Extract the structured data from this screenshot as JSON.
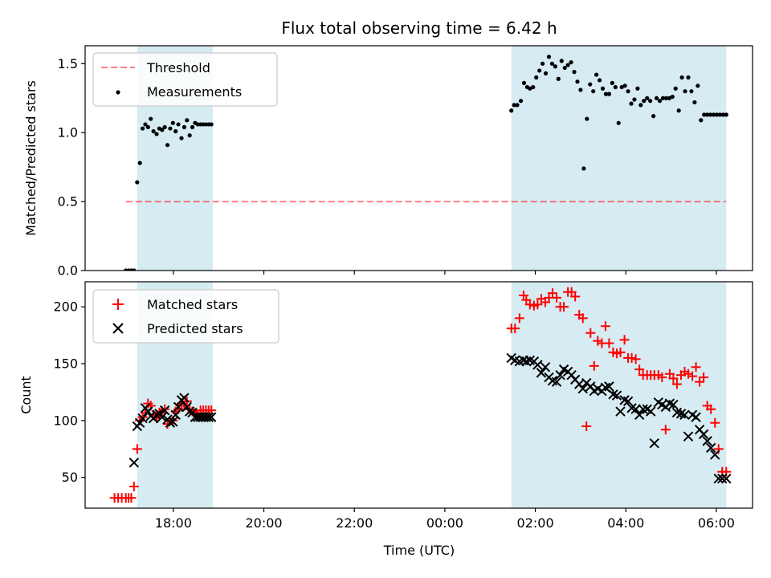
{
  "title": "Flux total observing time = 6.42 h",
  "colors": {
    "band": "#add8e6",
    "threshold": "#ff0000",
    "measurement": "#000000",
    "matched": "#ff0000",
    "predicted": "#000000"
  },
  "chart_data": [
    {
      "type": "scatter",
      "ylabel": "Matched/Predicted stars",
      "ylim": [
        0,
        1.63
      ],
      "xlim_hours": [
        16.05,
        30.8
      ],
      "yticks": [
        0.0,
        0.5,
        1.0,
        1.5
      ],
      "yticklabels": [
        "0.0",
        "0.5",
        "1.0",
        "1.5"
      ],
      "legend": {
        "placement": "upper-left",
        "entries": [
          "Threshold",
          "Measurements"
        ]
      },
      "shaded_intervals_hours": [
        [
          17.2,
          18.87
        ],
        [
          25.47,
          30.22
        ]
      ],
      "threshold": {
        "name": "Threshold",
        "value": 0.5,
        "x_range_hours": [
          16.95,
          30.22
        ],
        "style": "dashed"
      },
      "series": [
        {
          "name": "Measurements",
          "marker": "dot",
          "x_hours": [
            16.95,
            17.01,
            17.07,
            17.13,
            17.2,
            17.26,
            17.32,
            17.38,
            17.44,
            17.5,
            17.56,
            17.63,
            17.69,
            17.75,
            17.81,
            17.87,
            17.93,
            17.99,
            18.05,
            18.11,
            18.18,
            18.24,
            18.3,
            18.36,
            18.42,
            18.48,
            18.54,
            18.6,
            18.66,
            18.72,
            18.78,
            18.84,
            25.47,
            25.53,
            25.6,
            25.68,
            25.75,
            25.82,
            25.88,
            25.95,
            26.02,
            26.09,
            26.16,
            26.23,
            26.3,
            26.37,
            26.44,
            26.51,
            26.58,
            26.65,
            26.72,
            26.79,
            26.86,
            26.93,
            27.0,
            27.07,
            27.14,
            27.21,
            27.28,
            27.35,
            27.42,
            27.49,
            27.56,
            27.63,
            27.7,
            27.77,
            27.84,
            27.91,
            27.98,
            28.05,
            28.12,
            28.19,
            28.26,
            28.33,
            28.4,
            28.47,
            28.54,
            28.61,
            28.68,
            28.75,
            28.82,
            28.89,
            28.96,
            29.03,
            29.1,
            29.17,
            29.24,
            29.31,
            29.38,
            29.45,
            29.52,
            29.59,
            29.66,
            29.73,
            29.8,
            29.87,
            29.94,
            30.01,
            30.08,
            30.15,
            30.22
          ],
          "y": [
            0.0,
            0.0,
            0.0,
            0.0,
            0.64,
            0.78,
            1.03,
            1.06,
            1.04,
            1.1,
            1.01,
            0.99,
            1.03,
            1.02,
            1.04,
            0.91,
            1.03,
            1.07,
            1.01,
            1.06,
            0.96,
            1.04,
            1.09,
            0.98,
            1.04,
            1.07,
            1.06,
            1.06,
            1.06,
            1.06,
            1.06,
            1.06,
            1.16,
            1.2,
            1.2,
            1.23,
            1.36,
            1.33,
            1.32,
            1.33,
            1.4,
            1.45,
            1.5,
            1.43,
            1.55,
            1.5,
            1.48,
            1.39,
            1.52,
            1.47,
            1.49,
            1.51,
            1.44,
            1.37,
            1.31,
            0.74,
            1.1,
            1.35,
            1.3,
            1.42,
            1.38,
            1.32,
            1.28,
            1.28,
            1.36,
            1.33,
            1.07,
            1.33,
            1.34,
            1.3,
            1.21,
            1.24,
            1.32,
            1.2,
            1.23,
            1.25,
            1.23,
            1.12,
            1.25,
            1.23,
            1.25,
            1.25,
            1.25,
            1.26,
            1.32,
            1.16,
            1.4,
            1.3,
            1.4,
            1.3,
            1.22,
            1.34,
            1.09,
            1.13,
            1.13,
            1.13,
            1.13,
            1.13,
            1.13,
            1.13,
            1.13
          ]
        }
      ]
    },
    {
      "type": "scatter",
      "xlabel": "Time (UTC)",
      "ylabel": "Count",
      "ylim": [
        23,
        222
      ],
      "xlim_hours": [
        16.05,
        30.8
      ],
      "xticks_hours": [
        18,
        20,
        22,
        24,
        26,
        28,
        30
      ],
      "xticklabels": [
        "18:00",
        "20:00",
        "22:00",
        "00:00",
        "02:00",
        "04:00",
        "06:00"
      ],
      "yticks": [
        50,
        100,
        150,
        200
      ],
      "yticklabels": [
        "50",
        "100",
        "150",
        "200"
      ],
      "legend": {
        "placement": "upper-left",
        "entries": [
          "Matched stars",
          "Predicted stars"
        ]
      },
      "shaded_intervals_hours": [
        [
          17.2,
          18.87
        ],
        [
          25.47,
          30.22
        ]
      ],
      "series": [
        {
          "name": "Matched stars",
          "marker": "plus",
          "x_hours": [
            16.7,
            16.78,
            16.86,
            16.95,
            17.01,
            17.07,
            17.13,
            17.2,
            17.26,
            17.32,
            17.38,
            17.44,
            17.5,
            17.56,
            17.63,
            17.69,
            17.75,
            17.81,
            17.87,
            17.93,
            17.99,
            18.05,
            18.11,
            18.18,
            18.24,
            18.3,
            18.36,
            18.42,
            18.48,
            18.54,
            18.6,
            18.66,
            18.72,
            18.78,
            18.84,
            25.47,
            25.55,
            25.65,
            25.74,
            25.8,
            25.88,
            25.97,
            26.05,
            26.13,
            26.22,
            26.3,
            26.38,
            26.47,
            26.55,
            26.63,
            26.72,
            26.8,
            26.88,
            26.97,
            27.05,
            27.13,
            27.22,
            27.3,
            27.38,
            27.47,
            27.55,
            27.63,
            27.72,
            27.8,
            27.88,
            27.97,
            28.05,
            28.13,
            28.22,
            28.3,
            28.38,
            28.47,
            28.55,
            28.63,
            28.72,
            28.8,
            28.88,
            28.97,
            29.05,
            29.13,
            29.22,
            29.3,
            29.38,
            29.47,
            29.55,
            29.63,
            29.72,
            29.8,
            29.88,
            29.97,
            30.05,
            30.13,
            30.22
          ],
          "y": [
            32,
            32,
            32,
            32,
            32,
            32,
            42,
            75,
            100,
            103,
            107,
            115,
            113,
            105,
            102,
            107,
            108,
            110,
            97,
            100,
            100,
            108,
            110,
            115,
            113,
            117,
            110,
            108,
            106,
            104,
            109,
            109,
            109,
            109,
            109,
            181,
            181,
            190,
            210,
            206,
            202,
            201,
            202,
            207,
            204,
            208,
            212,
            208,
            200,
            200,
            213,
            213,
            209,
            193,
            190,
            95,
            177,
            148,
            170,
            168,
            183,
            168,
            160,
            159,
            160,
            171,
            155,
            155,
            154,
            145,
            140,
            140,
            140,
            140,
            140,
            138,
            92,
            141,
            137,
            132,
            140,
            143,
            141,
            139,
            147,
            134,
            138,
            113,
            110,
            98,
            75,
            55,
            55
          ]
        },
        {
          "name": "Predicted stars",
          "marker": "cross",
          "x_hours": [
            17.13,
            17.2,
            17.26,
            17.32,
            17.38,
            17.44,
            17.5,
            17.56,
            17.63,
            17.69,
            17.75,
            17.81,
            17.87,
            17.93,
            17.99,
            18.05,
            18.11,
            18.18,
            18.24,
            18.3,
            18.36,
            18.42,
            18.48,
            18.54,
            18.6,
            18.66,
            18.72,
            18.78,
            18.84,
            25.47,
            25.55,
            25.65,
            25.74,
            25.8,
            25.88,
            25.97,
            26.05,
            26.13,
            26.22,
            26.3,
            26.38,
            26.47,
            26.55,
            26.63,
            26.72,
            26.8,
            26.88,
            26.97,
            27.05,
            27.13,
            27.22,
            27.3,
            27.38,
            27.47,
            27.55,
            27.63,
            27.72,
            27.8,
            27.88,
            27.97,
            28.05,
            28.13,
            28.22,
            28.3,
            28.38,
            28.47,
            28.55,
            28.63,
            28.72,
            28.8,
            28.88,
            28.97,
            29.05,
            29.13,
            29.22,
            29.3,
            29.38,
            29.47,
            29.55,
            29.63,
            29.72,
            29.8,
            29.88,
            29.97,
            30.05,
            30.13,
            30.22
          ],
          "y": [
            63,
            95,
            98,
            102,
            111,
            108,
            104,
            102,
            105,
            106,
            103,
            109,
            101,
            98,
            99,
            105,
            112,
            118,
            120,
            112,
            108,
            107,
            103,
            103,
            103,
            103,
            103,
            103,
            103,
            155,
            153,
            152,
            153,
            152,
            153,
            152,
            149,
            142,
            147,
            138,
            135,
            134,
            140,
            145,
            143,
            140,
            136,
            132,
            128,
            133,
            130,
            126,
            128,
            126,
            129,
            130,
            123,
            122,
            108,
            118,
            117,
            111,
            110,
            105,
            110,
            110,
            108,
            80,
            116,
            114,
            112,
            115,
            114,
            107,
            106,
            105,
            86,
            105,
            103,
            92,
            88,
            82,
            76,
            70,
            49,
            49,
            49
          ]
        }
      ]
    }
  ]
}
